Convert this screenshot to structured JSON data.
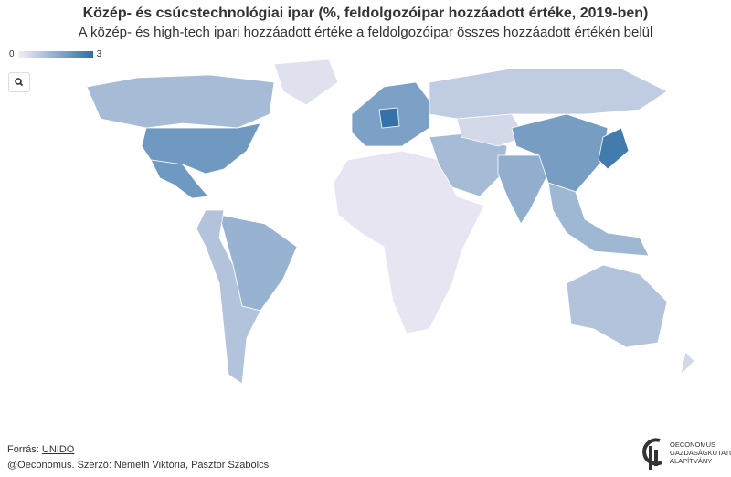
{
  "header": {
    "title": "Közép- és csúcstechnológiai ipar (%, feldolgozóipar hozzáadott értéke, 2019-ben)",
    "subtitle": "A közép- és high-tech ipari hozzáadott értéke a feldolgozóipar összes hozzáadott értékén belül"
  },
  "legend": {
    "min": 0,
    "max": 3
  },
  "map": {
    "values": [
      1.2,
      0.3,
      2.0,
      2.0,
      1.4,
      1.0,
      0.2,
      1.8,
      2.9,
      0.8,
      1.2,
      0.5,
      1.5,
      1.9,
      2.7,
      1.3,
      1.0,
      0.5
    ]
  },
  "footer": {
    "source_label": "Forrás:",
    "source_link": "UNIDO",
    "byline": "@Oeconomus. Szerző: Németh Viktória, Pásztor Szabolcs"
  },
  "logo": {
    "lines": [
      "OECONOMUS",
      "GAZDASÁGKUTATÓ",
      "ALAPÍTVÁNY"
    ]
  }
}
